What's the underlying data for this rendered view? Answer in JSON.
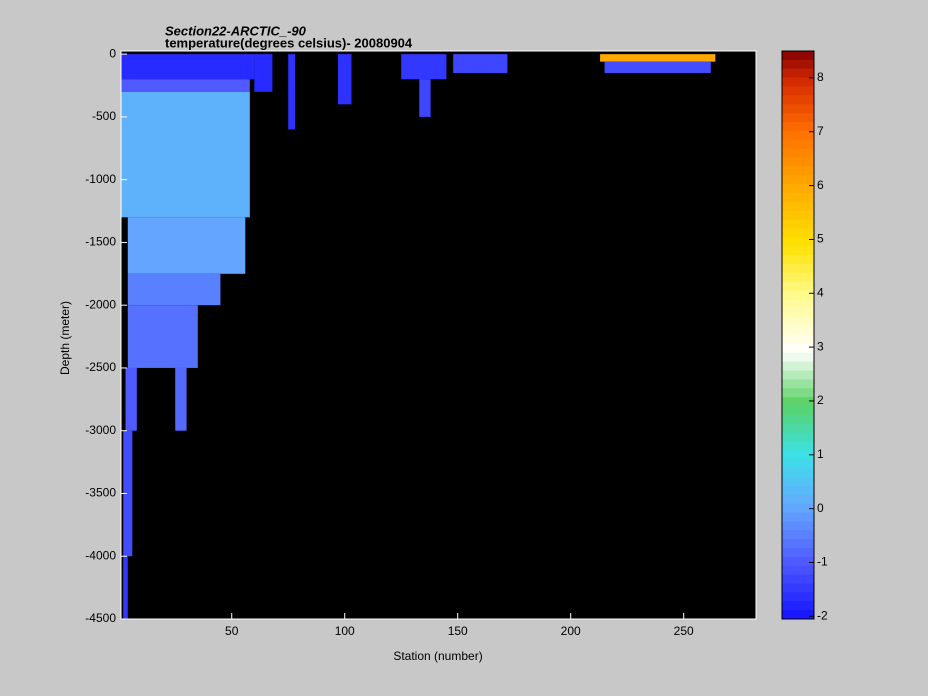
{
  "chart_data": {
    "type": "heatmap",
    "title": "Section22-ARCTIC_-90",
    "subtitle": "temperature(degrees celsius)- 20080904",
    "x_label": "Station (number)",
    "y_label": "Depth (meter)",
    "xlim": [
      1,
      282
    ],
    "ylim": [
      -4500,
      25
    ],
    "xticks": [
      50,
      100,
      150,
      200,
      250
    ],
    "yticks": [
      0,
      -500,
      -1000,
      -1500,
      -2000,
      -2500,
      -3000,
      -3500,
      -4000,
      -4500
    ],
    "clim": [
      -2.05,
      8.5
    ],
    "cticks": [
      -2,
      -1,
      0,
      1,
      2,
      3,
      4,
      5,
      6,
      7,
      8
    ],
    "cells": [
      {
        "x0": 1,
        "x1": 60,
        "y0": 0,
        "y1": -200,
        "value": -1.7
      },
      {
        "x0": 1,
        "x1": 58,
        "y0": -200,
        "y1": -300,
        "value": -1.0
      },
      {
        "x0": 1,
        "x1": 58,
        "y0": -300,
        "y1": -1300,
        "value": 0.2
      },
      {
        "x0": 4,
        "x1": 56,
        "y0": -1300,
        "y1": -1750,
        "value": 0.0
      },
      {
        "x0": 4,
        "x1": 45,
        "y0": -1750,
        "y1": -2000,
        "value": -0.5
      },
      {
        "x0": 4,
        "x1": 35,
        "y0": -2000,
        "y1": -2500,
        "value": -0.7
      },
      {
        "x0": 3,
        "x1": 8,
        "y0": -2500,
        "y1": -3000,
        "value": -1.0
      },
      {
        "x0": 25,
        "x1": 30,
        "y0": -2500,
        "y1": -3000,
        "value": -0.8
      },
      {
        "x0": 2,
        "x1": 6,
        "y0": -3000,
        "y1": -4000,
        "value": -1.2
      },
      {
        "x0": 2,
        "x1": 4,
        "y0": -4000,
        "y1": -4500,
        "value": -1.5
      },
      {
        "x0": 60,
        "x1": 68,
        "y0": 0,
        "y1": -300,
        "value": -1.7
      },
      {
        "x0": 75,
        "x1": 78,
        "y0": 0,
        "y1": -600,
        "value": -1.6
      },
      {
        "x0": 97,
        "x1": 103,
        "y0": 0,
        "y1": -400,
        "value": -1.6
      },
      {
        "x0": 125,
        "x1": 145,
        "y0": 0,
        "y1": -200,
        "value": -1.5
      },
      {
        "x0": 133,
        "x1": 138,
        "y0": -200,
        "y1": -500,
        "value": -1.3
      },
      {
        "x0": 148,
        "x1": 172,
        "y0": 0,
        "y1": -150,
        "value": -1.3
      },
      {
        "x0": 213,
        "x1": 264,
        "y0": 0,
        "y1": -60,
        "value": 6
      },
      {
        "x0": 215,
        "x1": 262,
        "y0": -60,
        "y1": -150,
        "value": -1.2
      }
    ]
  }
}
